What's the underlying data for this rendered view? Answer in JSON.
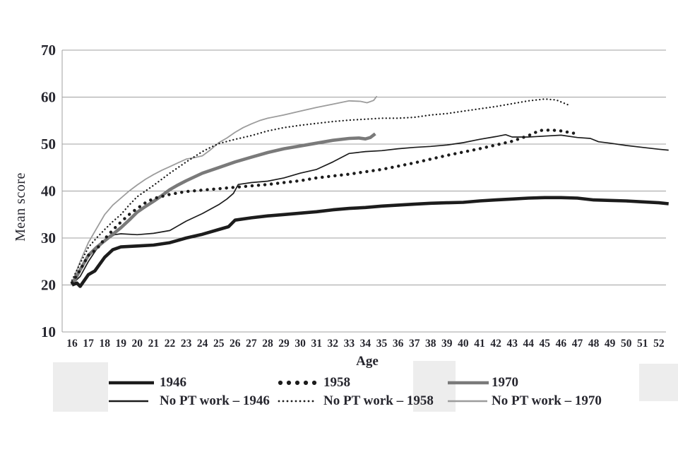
{
  "colors": {
    "black_line": "#1c1c1c",
    "gray_line": "#7a7a7a",
    "light_gray_line": "#9c9c9c",
    "grid": "#a0a0a0",
    "text": "#26262e",
    "scan_patch": "#ededed",
    "background": "#ffffff"
  },
  "chart_data": {
    "type": "line",
    "title": "",
    "xlabel": "Age",
    "ylabel": "Mean score",
    "xlim": [
      15.6,
      52.7
    ],
    "ylim": [
      10,
      70
    ],
    "yticks": [
      70,
      60,
      50,
      40,
      30,
      20,
      10
    ],
    "xticks": [
      16,
      17,
      18,
      19,
      20,
      21,
      22,
      23,
      24,
      25,
      26,
      27,
      28,
      29,
      30,
      31,
      32,
      33,
      34,
      35,
      36,
      37,
      38,
      39,
      40,
      41,
      42,
      43,
      44,
      45,
      46,
      47,
      48,
      49,
      50,
      51,
      52
    ],
    "grid": "horizontal-only",
    "legend_position": "bottom",
    "series": [
      {
        "name": "No PT work - 1970",
        "style": "thin-gray",
        "points": [
          [
            16,
            20.5
          ],
          [
            16.5,
            25
          ],
          [
            17,
            29
          ],
          [
            17.5,
            32
          ],
          [
            18,
            35
          ],
          [
            18.5,
            37
          ],
          [
            19,
            38.5
          ],
          [
            19.5,
            40
          ],
          [
            20,
            41.3
          ],
          [
            20.5,
            42.5
          ],
          [
            21,
            43.5
          ],
          [
            21.5,
            44.4
          ],
          [
            22,
            45.2
          ],
          [
            22.5,
            46
          ],
          [
            23,
            46.8
          ],
          [
            23.5,
            47.1
          ],
          [
            24,
            47.5
          ],
          [
            24.5,
            48.8
          ],
          [
            25,
            50.3
          ],
          [
            25.5,
            51.3
          ],
          [
            26,
            52.5
          ],
          [
            26.5,
            53.5
          ],
          [
            27,
            54.3
          ],
          [
            27.5,
            55
          ],
          [
            28,
            55.5
          ],
          [
            29,
            56.2
          ],
          [
            30,
            57
          ],
          [
            31,
            57.8
          ],
          [
            32,
            58.5
          ],
          [
            33,
            59.2
          ],
          [
            33.7,
            59.1
          ],
          [
            34.1,
            58.8
          ],
          [
            34.5,
            59.3
          ],
          [
            34.7,
            60.2
          ]
        ]
      },
      {
        "name": "No PT work - 1958",
        "style": "fine-dotted",
        "points": [
          [
            16,
            21
          ],
          [
            16.5,
            24.6
          ],
          [
            17,
            28
          ],
          [
            17.5,
            30
          ],
          [
            18,
            31.8
          ],
          [
            18.5,
            33.5
          ],
          [
            19,
            35
          ],
          [
            19.5,
            37
          ],
          [
            20,
            38.8
          ],
          [
            20.5,
            40
          ],
          [
            21,
            41.2
          ],
          [
            21.5,
            42.5
          ],
          [
            22,
            43.8
          ],
          [
            22.5,
            45
          ],
          [
            23,
            46.2
          ],
          [
            23.5,
            47.3
          ],
          [
            24,
            48.4
          ],
          [
            24.5,
            49.3
          ],
          [
            25,
            50.1
          ],
          [
            26,
            51
          ],
          [
            27,
            51.8
          ],
          [
            28,
            52.8
          ],
          [
            29,
            53.5
          ],
          [
            30,
            54
          ],
          [
            31,
            54.4
          ],
          [
            32,
            54.8
          ],
          [
            33,
            55.1
          ],
          [
            34,
            55.3
          ],
          [
            35,
            55.5
          ],
          [
            36,
            55.5
          ],
          [
            37,
            55.7
          ],
          [
            38,
            56.2
          ],
          [
            39,
            56.5
          ],
          [
            40,
            57
          ],
          [
            41,
            57.5
          ],
          [
            42,
            58
          ],
          [
            43,
            58.6
          ],
          [
            44,
            59.2
          ],
          [
            45,
            59.6
          ],
          [
            45.7,
            59.4
          ],
          [
            46.4,
            58.4
          ]
        ]
      },
      {
        "name": "No PT work - 1946",
        "style": "thin-black",
        "points": [
          [
            16,
            20.2
          ],
          [
            16.5,
            21.8
          ],
          [
            17,
            25
          ],
          [
            17.5,
            27.6
          ],
          [
            18,
            29.3
          ],
          [
            18.6,
            30.7
          ],
          [
            19,
            30.9
          ],
          [
            20,
            30.7
          ],
          [
            21,
            31
          ],
          [
            22,
            31.6
          ],
          [
            23,
            33.6
          ],
          [
            24,
            35.2
          ],
          [
            25,
            37.1
          ],
          [
            25.5,
            38.3
          ],
          [
            25.9,
            39.5
          ],
          [
            26.2,
            41.4
          ],
          [
            27,
            41.8
          ],
          [
            28,
            42.1
          ],
          [
            29,
            42.8
          ],
          [
            30,
            43.8
          ],
          [
            31,
            44.6
          ],
          [
            32,
            46.2
          ],
          [
            33,
            48
          ],
          [
            34,
            48.4
          ],
          [
            35,
            48.6
          ],
          [
            36,
            49
          ],
          [
            37,
            49.3
          ],
          [
            38,
            49.5
          ],
          [
            39,
            49.8
          ],
          [
            40,
            50.3
          ],
          [
            41,
            51
          ],
          [
            42,
            51.6
          ],
          [
            42.6,
            52
          ],
          [
            43,
            51.5
          ],
          [
            44,
            51.5
          ],
          [
            45,
            51.7
          ],
          [
            46,
            51.9
          ],
          [
            47,
            51.4
          ],
          [
            47.8,
            51.2
          ],
          [
            48.3,
            50.5
          ],
          [
            49,
            50.2
          ],
          [
            50,
            49.7
          ],
          [
            51,
            49.3
          ],
          [
            52,
            48.9
          ],
          [
            52.6,
            48.7
          ]
        ]
      },
      {
        "name": "1970",
        "style": "thick-gray",
        "points": [
          [
            16,
            20
          ],
          [
            16.5,
            23.2
          ],
          [
            17,
            26.3
          ],
          [
            17.5,
            28
          ],
          [
            18,
            29.4
          ],
          [
            18.5,
            30.8
          ],
          [
            19,
            32.2
          ],
          [
            19.5,
            33.8
          ],
          [
            20,
            35.5
          ],
          [
            20.5,
            36.7
          ],
          [
            21,
            37.8
          ],
          [
            21.5,
            39
          ],
          [
            22,
            40.3
          ],
          [
            22.5,
            41.3
          ],
          [
            23,
            42.2
          ],
          [
            24,
            43.8
          ],
          [
            25,
            45
          ],
          [
            26,
            46.2
          ],
          [
            27,
            47.2
          ],
          [
            28,
            48.2
          ],
          [
            29,
            49
          ],
          [
            30,
            49.6
          ],
          [
            31,
            50.2
          ],
          [
            32,
            50.8
          ],
          [
            33,
            51.2
          ],
          [
            33.6,
            51.3
          ],
          [
            34,
            51.1
          ],
          [
            34.3,
            51.4
          ],
          [
            34.6,
            52.2
          ]
        ]
      },
      {
        "name": "1958",
        "style": "bold-dotted",
        "points": [
          [
            16,
            20.5
          ],
          [
            16.5,
            23.2
          ],
          [
            17,
            26.3
          ],
          [
            17.5,
            27.6
          ],
          [
            18,
            29.8
          ],
          [
            18.5,
            31.7
          ],
          [
            19,
            33.4
          ],
          [
            19.5,
            35
          ],
          [
            20,
            36.3
          ],
          [
            20.5,
            37.5
          ],
          [
            21,
            38.4
          ],
          [
            22,
            39.3
          ],
          [
            23,
            39.9
          ],
          [
            24,
            40.2
          ],
          [
            25,
            40.5
          ],
          [
            26,
            40.8
          ],
          [
            27,
            41.1
          ],
          [
            28,
            41.4
          ],
          [
            29,
            41.8
          ],
          [
            30,
            42.2
          ],
          [
            31,
            42.8
          ],
          [
            32,
            43.2
          ],
          [
            33,
            43.6
          ],
          [
            34,
            44.1
          ],
          [
            35,
            44.6
          ],
          [
            36,
            45.3
          ],
          [
            37,
            46
          ],
          [
            38,
            46.8
          ],
          [
            39,
            47.6
          ],
          [
            40,
            48.3
          ],
          [
            41,
            49
          ],
          [
            42,
            49.8
          ],
          [
            43,
            50.6
          ],
          [
            44,
            51.8
          ],
          [
            44.7,
            52.9
          ],
          [
            45.4,
            53
          ],
          [
            46,
            52.8
          ],
          [
            46.8,
            52.3
          ]
        ]
      },
      {
        "name": "1946",
        "style": "thick-black",
        "points": [
          [
            16,
            20
          ],
          [
            16.3,
            20.4
          ],
          [
            16.5,
            19.7
          ],
          [
            17,
            22.2
          ],
          [
            17.4,
            23
          ],
          [
            18,
            25.9
          ],
          [
            18.5,
            27.5
          ],
          [
            19,
            28.1
          ],
          [
            20,
            28.3
          ],
          [
            21,
            28.5
          ],
          [
            22,
            29
          ],
          [
            23,
            30
          ],
          [
            24,
            30.8
          ],
          [
            25,
            31.8
          ],
          [
            25.6,
            32.4
          ],
          [
            26,
            33.8
          ],
          [
            27,
            34.3
          ],
          [
            28,
            34.7
          ],
          [
            29,
            35
          ],
          [
            30,
            35.3
          ],
          [
            31,
            35.6
          ],
          [
            32,
            36
          ],
          [
            33,
            36.3
          ],
          [
            34,
            36.5
          ],
          [
            35,
            36.8
          ],
          [
            36,
            37
          ],
          [
            37,
            37.2
          ],
          [
            38,
            37.4
          ],
          [
            39,
            37.5
          ],
          [
            40,
            37.6
          ],
          [
            41,
            37.9
          ],
          [
            42,
            38.1
          ],
          [
            43,
            38.3
          ],
          [
            44,
            38.5
          ],
          [
            45,
            38.6
          ],
          [
            46,
            38.6
          ],
          [
            47,
            38.5
          ],
          [
            48,
            38.1
          ],
          [
            49,
            38
          ],
          [
            50,
            37.9
          ],
          [
            51,
            37.7
          ],
          [
            52,
            37.5
          ],
          [
            52.6,
            37.3
          ]
        ]
      }
    ]
  },
  "legend": {
    "rows": [
      [
        {
          "label": "1946",
          "swatch": "thick-black"
        },
        {
          "label": "1958",
          "swatch": "bold-dotted"
        },
        {
          "label": "1970",
          "swatch": "thick-gray"
        }
      ],
      [
        {
          "label": "No PT work – 1946",
          "swatch": "thin-black"
        },
        {
          "label": "No PT work – 1958",
          "swatch": "fine-dotted"
        },
        {
          "label": "No PT work – 1970",
          "swatch": "thin-gray"
        }
      ]
    ]
  }
}
